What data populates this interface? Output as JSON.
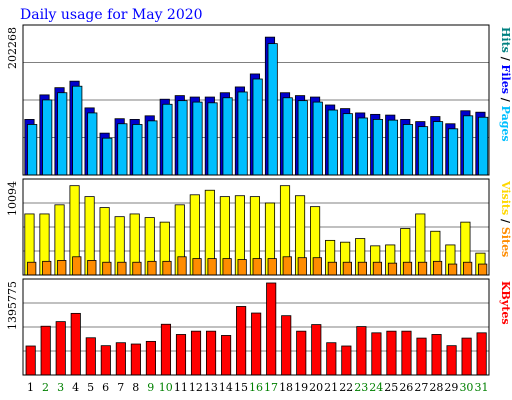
{
  "chart_data": {
    "type": "bar",
    "title": "Daily usage for May 2020",
    "title_color": "#0000ff",
    "days": [
      "1",
      "2",
      "3",
      "4",
      "5",
      "6",
      "7",
      "8",
      "9",
      "10",
      "11",
      "12",
      "13",
      "14",
      "15",
      "16",
      "17",
      "18",
      "19",
      "20",
      "21",
      "22",
      "23",
      "24",
      "25",
      "26",
      "27",
      "28",
      "29",
      "30",
      "31"
    ],
    "weekend_days": [
      2,
      3,
      9,
      10,
      16,
      17,
      23,
      24,
      30,
      31
    ],
    "weekday_label_color": "#000000",
    "weekend_label_color": "#008000",
    "panels": [
      {
        "id": "hits",
        "max_label": "202268",
        "scale_max": 202268,
        "right_labels": [
          {
            "text": "Hits",
            "color": "#008080"
          },
          {
            "text": " / ",
            "color": "#000000"
          },
          {
            "text": "Files",
            "color": "#0000ff"
          },
          {
            "text": " / ",
            "color": "#000000"
          },
          {
            "text": "Pages",
            "color": "#00bfff"
          }
        ],
        "series": [
          {
            "name": "Hits",
            "color": "#0000cc",
            "values": [
              77000,
              111000,
              121000,
              130000,
              93000,
              58000,
              78000,
              77000,
              82000,
              105000,
              110000,
              108000,
              108000,
              114000,
              122000,
              140000,
              191000,
              114000,
              110000,
              108000,
              97000,
              92000,
              86000,
              84000,
              83000,
              77000,
              74000,
              81000,
              71000,
              89000,
              87000
            ]
          },
          {
            "name": "Pages",
            "color": "#00bfff",
            "values": [
              70000,
              104000,
              114000,
              123000,
              86000,
              51000,
              71000,
              70000,
              75000,
              98000,
              103000,
              101000,
              100000,
              107000,
              115000,
              133000,
              182000,
              107000,
              103000,
              101000,
              90000,
              85000,
              79000,
              77000,
              76000,
              70000,
              67000,
              74000,
              64000,
              82000,
              80000
            ]
          }
        ]
      },
      {
        "id": "visits",
        "max_label": "10094",
        "scale_max": 10094,
        "right_labels": [
          {
            "text": "Visits",
            "color": "#ffd700"
          },
          {
            "text": " / ",
            "color": "#000000"
          },
          {
            "text": "Sites",
            "color": "#ff8c00"
          }
        ],
        "series": [
          {
            "name": "Visits",
            "color": "#ffff00",
            "values": [
              6700,
              6700,
              7700,
              9800,
              8600,
              7400,
              6400,
              6700,
              6300,
              5800,
              7700,
              8800,
              9300,
              8600,
              8700,
              8600,
              7900,
              9800,
              8700,
              7500,
              3800,
              3600,
              4000,
              3200,
              3300,
              5100,
              6700,
              4800,
              3300,
              5800,
              2400
            ]
          },
          {
            "name": "Sites",
            "color": "#ff8c00",
            "values": [
              1400,
              1500,
              1600,
              2000,
              1600,
              1400,
              1400,
              1400,
              1500,
              1500,
              2000,
              1800,
              1800,
              1800,
              1700,
              1800,
              1800,
              2000,
              1900,
              1900,
              1400,
              1400,
              1400,
              1400,
              1300,
              1400,
              1400,
              1500,
              1200,
              1400,
              1200
            ]
          }
        ]
      },
      {
        "id": "kbytes",
        "max_label": "1395775",
        "scale_max": 1395775,
        "right_labels": [
          {
            "text": "KBytes",
            "color": "#ff0000"
          }
        ],
        "series": [
          {
            "name": "KBytes",
            "color": "#ff0000",
            "values": [
              440000,
              740000,
              810000,
              935000,
              565000,
              445000,
              490000,
              470000,
              510000,
              770000,
              615000,
              665000,
              665000,
              600000,
              1040000,
              940000,
              1395775,
              900000,
              665000,
              765000,
              490000,
              440000,
              735000,
              640000,
              665000,
              665000,
              560000,
              615000,
              445000,
              560000,
              640000
            ]
          }
        ]
      }
    ]
  }
}
